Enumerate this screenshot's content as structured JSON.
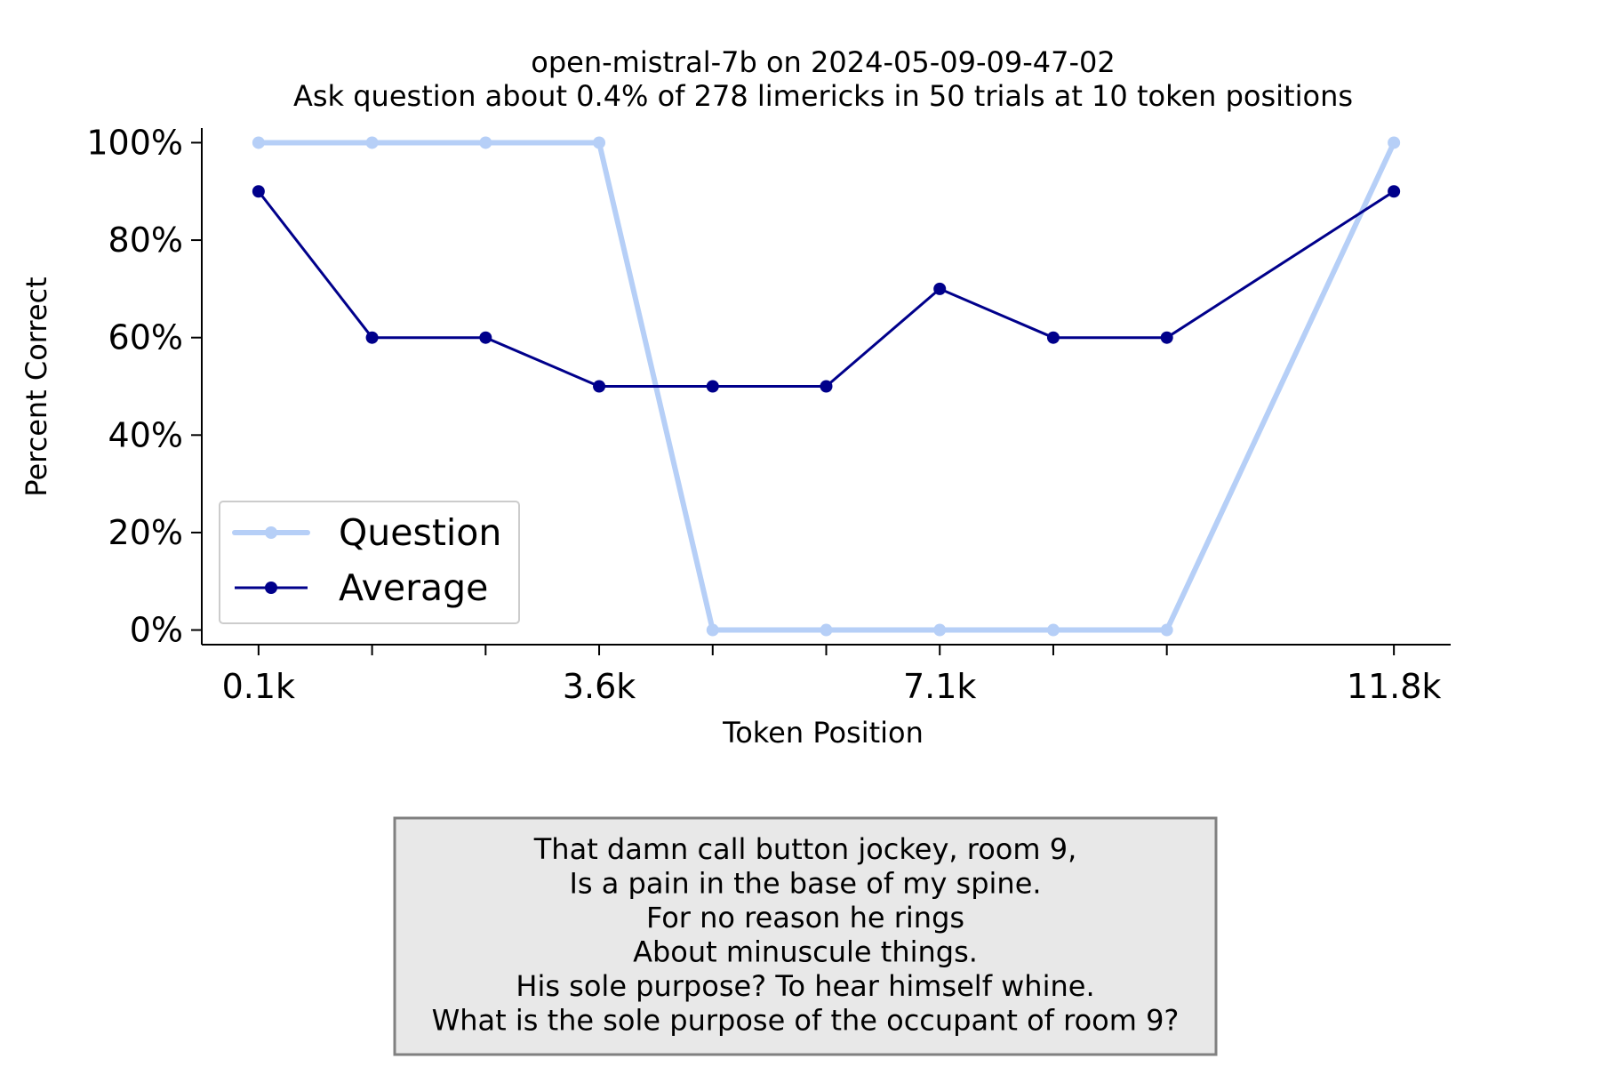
{
  "chart_data": {
    "type": "line",
    "title": "open-mistral-7b on 2024-05-09-09-47-02",
    "subtitle": "Ask question about 0.4% of 278 limericks in 50 trials at 10 token positions",
    "xlabel": "Token Position",
    "ylabel": "Percent Correct",
    "x_tick_labels": [
      "0.1k",
      "3.6k",
      "7.1k",
      "11.8k"
    ],
    "x_tick_label_positions": [
      0,
      3,
      6,
      10
    ],
    "y_tick_labels": [
      "0%",
      "20%",
      "40%",
      "60%",
      "80%",
      "100%"
    ],
    "y_ticks": [
      0,
      20,
      40,
      60,
      80,
      100
    ],
    "ylim": [
      -3,
      103
    ],
    "xlim": [
      -0.5,
      10.5
    ],
    "x": [
      0,
      1,
      2,
      3,
      4,
      5,
      6,
      7,
      8,
      10
    ],
    "series": [
      {
        "name": "Question",
        "color": "#b6cff7",
        "values": [
          100,
          100,
          100,
          100,
          0,
          0,
          0,
          0,
          0,
          100
        ]
      },
      {
        "name": "Average",
        "color": "#00008b",
        "values": [
          90,
          60,
          60,
          50,
          50,
          50,
          70,
          60,
          60,
          90
        ]
      }
    ],
    "legend": "lower-left",
    "grid": false
  },
  "note": {
    "lines": [
      "That damn call button jockey, room 9,",
      "Is a pain in the base of my spine.",
      "For no reason he rings",
      "About minuscule things.",
      "His sole purpose? To hear himself whine.",
      "What is the sole purpose of the occupant of room 9?"
    ],
    "background": "#e8e8e8",
    "border": "#808080"
  }
}
